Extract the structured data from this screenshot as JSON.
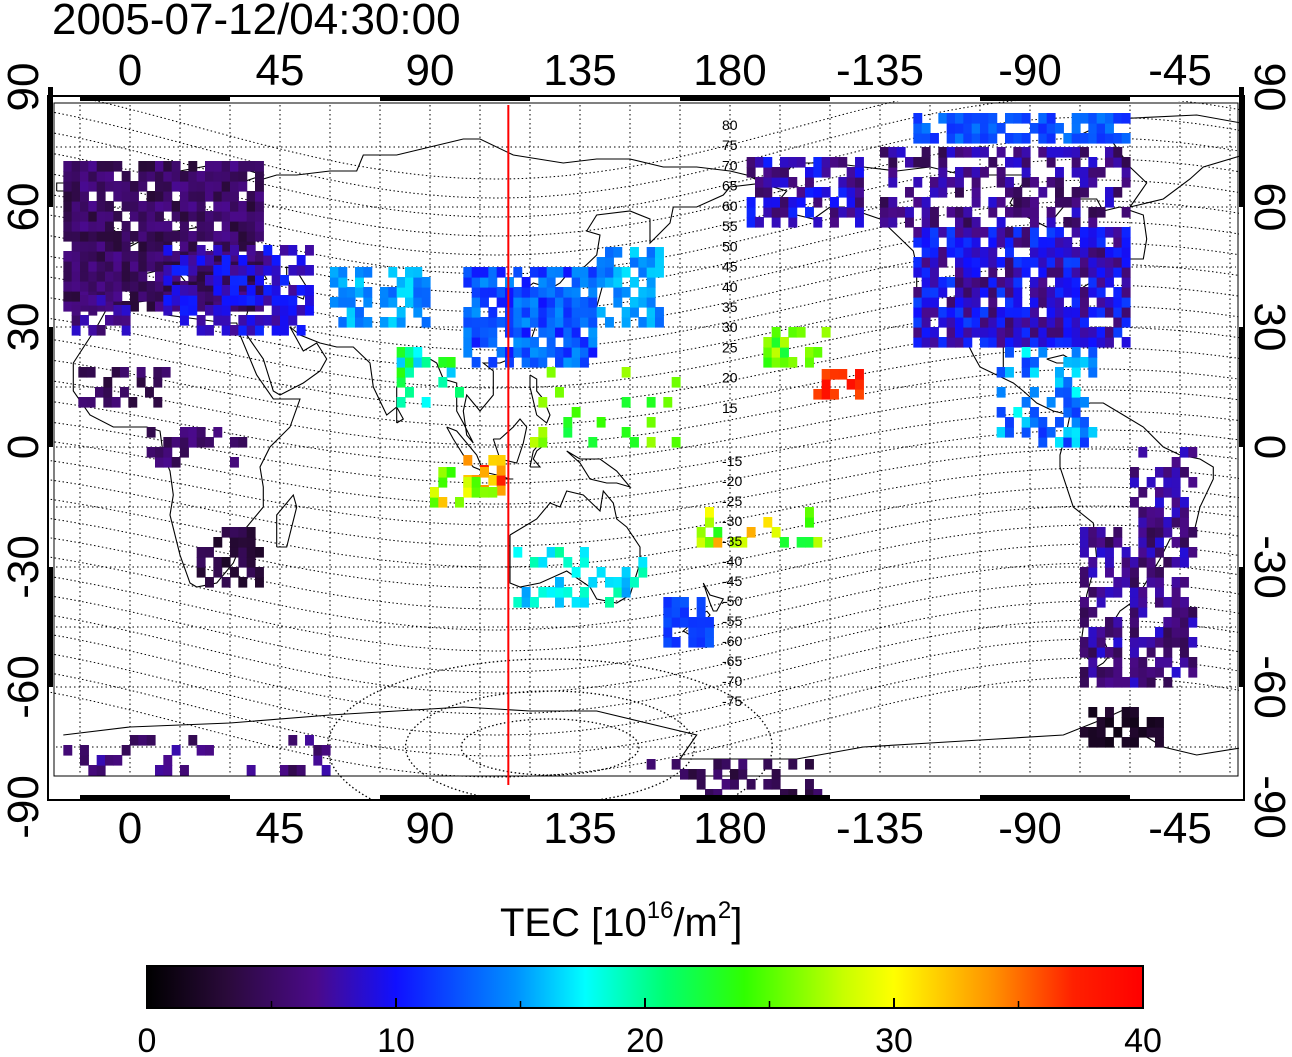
{
  "title": "2005-07-12/04:30:00",
  "map": {
    "lon_ticks_top": [
      "0",
      "45",
      "90",
      "135",
      "180",
      "-135",
      "-90",
      "-45"
    ],
    "lon_ticks_bottom": [
      "0",
      "45",
      "90",
      "135",
      "180",
      "-135",
      "-90",
      "-45"
    ],
    "lat_ticks": [
      "90",
      "60",
      "30",
      "0",
      "-30",
      "-60",
      "-90"
    ],
    "longitude_range": [
      -23.7,
      335.5
    ],
    "latitude_range": [
      -90,
      90
    ],
    "terminator_longitude": 113.5,
    "terminator_color": "#ff0000",
    "contour_labels_north": [
      "80",
      "75",
      "70",
      "65",
      "60",
      "55",
      "50",
      "45",
      "40",
      "35",
      "30",
      "25",
      "20",
      "15"
    ],
    "contour_labels_south": [
      "-15",
      "-20",
      "-25",
      "-30",
      "-35",
      "-40",
      "-45",
      "-50",
      "-55",
      "-60",
      "-65",
      "-70",
      "-75"
    ]
  },
  "colorbar": {
    "label_prefix": "TEC  [10",
    "label_exp1": "16",
    "label_mid": "/m",
    "label_exp2": "2",
    "label_suffix": "]",
    "min": 0,
    "max": 40,
    "ticks": [
      "0",
      "10",
      "20",
      "30",
      "40"
    ],
    "colormap": "jet-like: black-purple-blue-cyan-green-yellow-red"
  }
}
